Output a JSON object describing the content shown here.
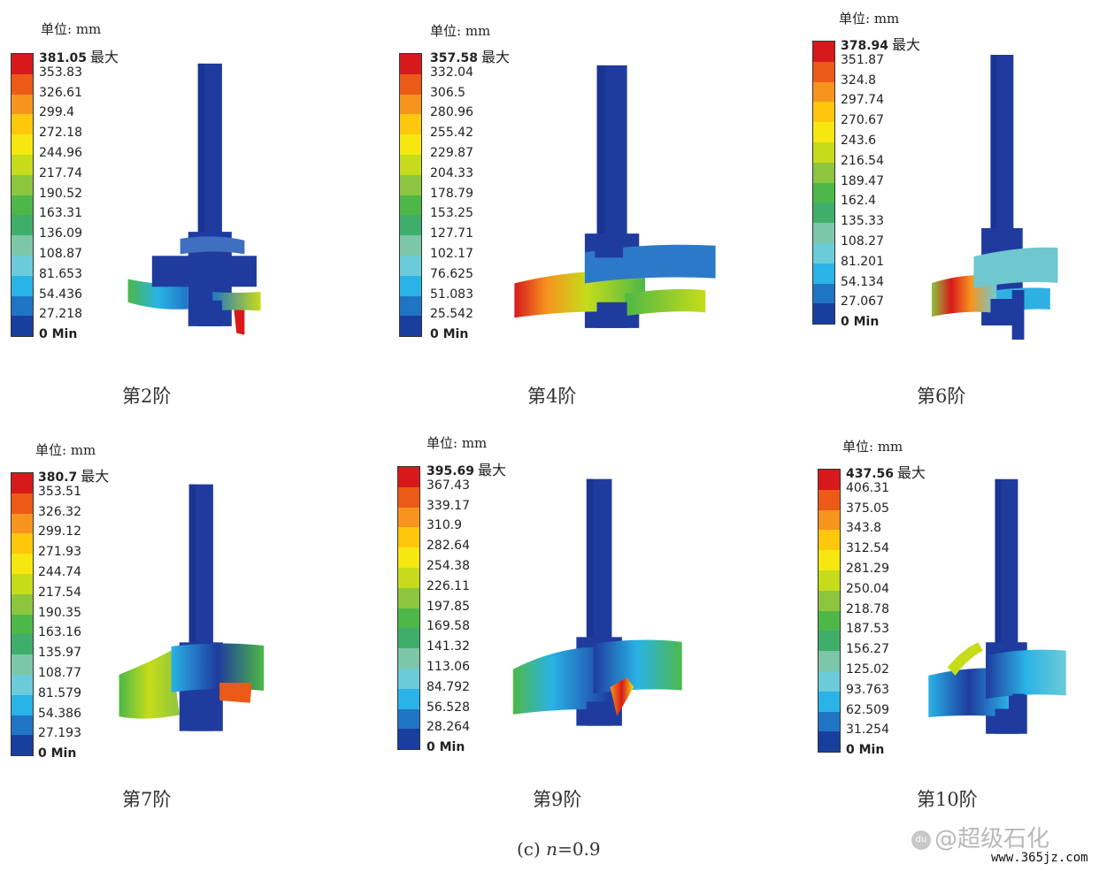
{
  "panels": [
    {
      "unit": "单位: mm",
      "max_word": "最大",
      "labels": [
        "381.05",
        "353.83",
        "326.61",
        "299.4",
        "272.18",
        "244.96",
        "217.74",
        "190.52",
        "163.31",
        "136.09",
        "108.87",
        "81.653",
        "54.436",
        "27.218",
        "0 Min"
      ],
      "caption": "第2阶"
    },
    {
      "unit": "单位: mm",
      "max_word": "最大",
      "labels": [
        "357.58",
        "332.04",
        "306.5",
        "280.96",
        "255.42",
        "229.87",
        "204.33",
        "178.79",
        "153.25",
        "127.71",
        "102.17",
        "76.625",
        "51.083",
        "25.542",
        "0 Min"
      ],
      "caption": "第4阶"
    },
    {
      "unit": "单位: mm",
      "max_word": "最大",
      "labels": [
        "378.94",
        "351.87",
        "324.8",
        "297.74",
        "270.67",
        "243.6",
        "216.54",
        "189.47",
        "162.4",
        "135.33",
        "108.27",
        "81.201",
        "54.134",
        "27.067",
        "0 Min"
      ],
      "caption": "第6阶"
    },
    {
      "unit": "单位: mm",
      "max_word": "最大",
      "labels": [
        "380.7",
        "353.51",
        "326.32",
        "299.12",
        "271.93",
        "244.74",
        "217.54",
        "190.35",
        "163.16",
        "135.97",
        "108.77",
        "81.579",
        "54.386",
        "27.193",
        "0 Min"
      ],
      "caption": "第7阶"
    },
    {
      "unit": "单位: mm",
      "max_word": "最大",
      "labels": [
        "395.69",
        "367.43",
        "339.17",
        "310.9",
        "282.64",
        "254.38",
        "226.11",
        "197.85",
        "169.58",
        "141.32",
        "113.06",
        "84.792",
        "56.528",
        "28.264",
        "0 Min"
      ],
      "caption": "第9阶"
    },
    {
      "unit": "单位: mm",
      "max_word": "最大",
      "labels": [
        "437.56",
        "406.31",
        "375.05",
        "343.8",
        "312.54",
        "281.29",
        "250.04",
        "218.78",
        "187.53",
        "156.27",
        "125.02",
        "93.763",
        "62.509",
        "31.254",
        "0 Min"
      ],
      "caption": "第10阶"
    }
  ],
  "scale_colors": [
    "#d7191c",
    "#ec5a17",
    "#f7941d",
    "#fdc70c",
    "#f5e70f",
    "#c6dc1a",
    "#8cc63f",
    "#4db848",
    "#3fae6a",
    "#7cc7a8",
    "#6ccbd8",
    "#29b3e6",
    "#1f75c4",
    "#183f9e"
  ],
  "subcaption_prefix": "(c) ",
  "subcaption_var": "n",
  "subcaption_value": "=0.9",
  "watermark": "@超级石化",
  "url": "www.365jz.com"
}
